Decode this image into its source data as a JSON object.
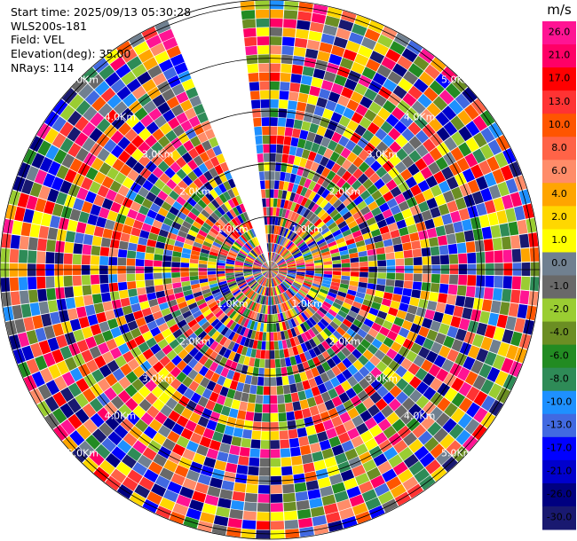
{
  "info": {
    "start_time": "Start time: 2025/09/13 05:30:28",
    "device": "WLS200s-181",
    "field": "Field: VEL",
    "elevation": "Elevation(deg): 35.00",
    "nrays": "NRays: 114"
  },
  "chart_data": {
    "type": "heatmap",
    "projection": "polar PPI",
    "field": "VEL",
    "units": "m/s",
    "elevation_deg": 35.0,
    "n_rays": 114,
    "range_rings_km": [
      1.0,
      2.0,
      3.0,
      4.0,
      5.0
    ],
    "range_ring_labels": [
      "1.0Km",
      "2.0Km",
      "3.0Km",
      "4.0Km",
      "5.0Km"
    ],
    "max_range_km": 5.1,
    "missing_sector_deg": [
      338,
      355
    ],
    "colorbar": {
      "title": "m/s",
      "tick_labels": [
        "26.0",
        "21.0",
        "17.0",
        "13.0",
        "10.0",
        "8.0",
        "6.0",
        "4.0",
        "2.0",
        "1.0",
        "0.0",
        "-1.0",
        "-2.0",
        "-4.0",
        "-6.0",
        "-8.0",
        "-10.0",
        "-13.0",
        "-17.0",
        "-21.0",
        "-26.0",
        "-30.0"
      ],
      "colors": [
        "#ff1493",
        "#ff0066",
        "#ff0000",
        "#ff3333",
        "#ff5500",
        "#ff6347",
        "#ff8c69",
        "#ffa500",
        "#ffd700",
        "#ffff00",
        "#708090",
        "#696969",
        "#9acd32",
        "#6b8e23",
        "#228b22",
        "#2e8b57",
        "#1e90ff",
        "#4169e1",
        "#0000ff",
        "#0000cd",
        "#000080",
        "#191970"
      ]
    }
  }
}
